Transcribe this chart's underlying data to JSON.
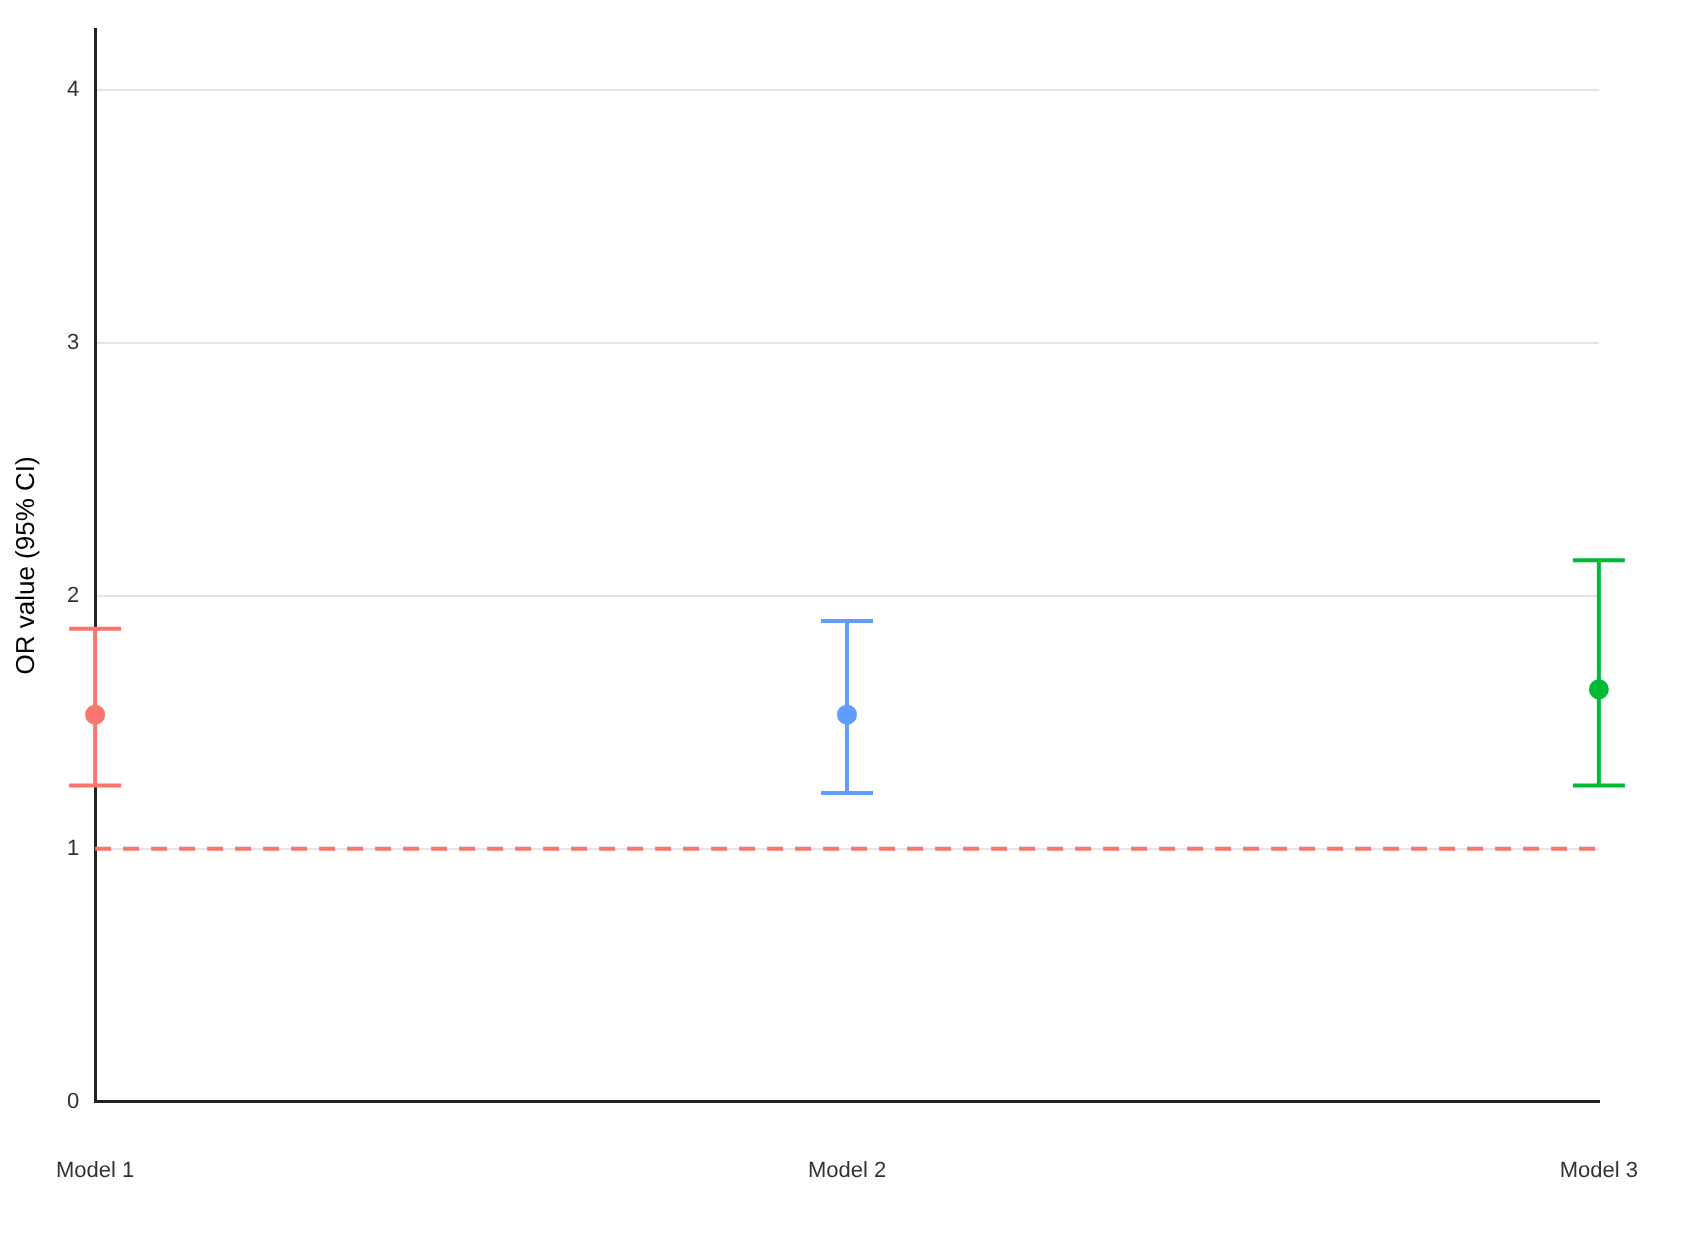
{
  "chart_data": {
    "type": "scatter",
    "ylabel": "OR value (95% CI)",
    "categories": [
      "Model 1",
      "Model 2",
      "Model 3"
    ],
    "values": [
      1.53,
      1.53,
      1.63
    ],
    "colors": [
      "#f8766d",
      "#619cff",
      "#00ba38"
    ],
    "errors": [
      [
        1.25,
        1.87
      ],
      [
        1.22,
        1.9
      ],
      [
        1.25,
        2.14
      ]
    ],
    "ylim": [
      0,
      4.24
    ],
    "yticks": [
      0,
      1,
      2,
      3,
      4
    ],
    "grid": "y",
    "marker": "circle",
    "ref_lines": [
      {
        "axis": "y",
        "value": 1,
        "color": "#f8766d",
        "line_style": "dashed"
      }
    ]
  }
}
